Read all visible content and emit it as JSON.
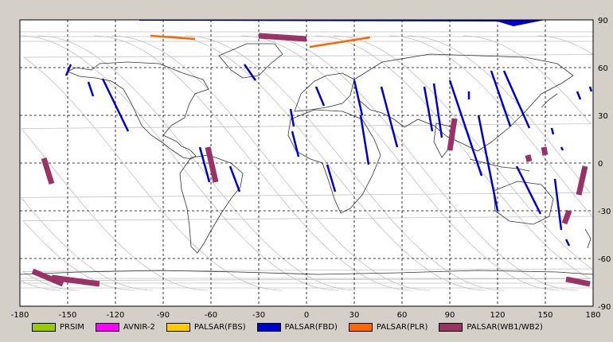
{
  "map": {
    "x_ticks": [
      "-180",
      "-150",
      "-120",
      "-90",
      "-60",
      "-30",
      "0",
      "30",
      "60",
      "90",
      "120",
      "150",
      "180"
    ],
    "y_ticks": [
      "90",
      "60",
      "30",
      "0",
      "-30",
      "-60",
      "-90"
    ],
    "colors": {
      "background": "#ffffff",
      "grid": "#000000",
      "coast": "#222222",
      "orbit": "#c0c0c0",
      "window_bg": "#d4d0c8"
    },
    "chart_data": {
      "type": "map",
      "projection": "equirectangular",
      "xlim": [
        -180,
        180
      ],
      "ylim": [
        -90,
        90
      ],
      "grid": true,
      "grid_style": "dashed",
      "legend_placement": "bottom",
      "series": [
        {
          "name": "PRSIM",
          "color": "#99cc00",
          "tracks": []
        },
        {
          "name": "AVNIR-2",
          "color": "#ff00ff",
          "tracks": []
        },
        {
          "name": "PALSAR(FBS)",
          "color": "#ffcc00",
          "tracks": []
        },
        {
          "name": "PALSAR(FBD)",
          "color": "#0000cc",
          "tracks": [
            [
              [
                -148,
                62
              ],
              [
                -151,
                55
              ]
            ],
            [
              [
                -137,
                51
              ],
              [
                -134,
                42
              ]
            ],
            [
              [
                -128,
                53
              ],
              [
                -112,
                20
              ]
            ],
            [
              [
                -67,
                10
              ],
              [
                -61,
                -12
              ]
            ],
            [
              [
                -48,
                -2
              ],
              [
                -42,
                -18
              ]
            ],
            [
              [
                -39,
                62
              ],
              [
                -32,
                52
              ]
            ],
            [
              [
                -10,
                34
              ],
              [
                -8,
                23
              ]
            ],
            [
              [
                -9,
                20
              ],
              [
                -5,
                4
              ]
            ],
            [
              [
                6,
                48
              ],
              [
                11,
                36
              ]
            ],
            [
              [
                13,
                -1
              ],
              [
                18,
                -18
              ]
            ],
            [
              [
                30,
                52
              ],
              [
                35,
                30
              ]
            ],
            [
              [
                34,
                30
              ],
              [
                39,
                -1
              ]
            ],
            [
              [
                47,
                48
              ],
              [
                57,
                10
              ]
            ],
            [
              [
                80,
                50
              ],
              [
                85,
                16
              ]
            ],
            [
              [
                74,
                48
              ],
              [
                79,
                20
              ]
            ],
            [
              [
                90,
                52
              ],
              [
                110,
                -8
              ]
            ],
            [
              [
                108,
                30
              ],
              [
                120,
                -30
              ]
            ],
            [
              [
                116,
                58
              ],
              [
                128,
                23
              ]
            ],
            [
              [
                124,
                58
              ],
              [
                140,
                22
              ]
            ],
            [
              [
                132,
                -2
              ],
              [
                147,
                -32
              ]
            ],
            [
              [
                154,
                22
              ],
              [
                155,
                18
              ]
            ],
            [
              [
                160,
                10
              ],
              [
                161,
                8
              ]
            ],
            [
              [
                156,
                -10
              ],
              [
                160,
                -42
              ]
            ],
            [
              [
                170,
                45
              ],
              [
                172,
                40
              ]
            ],
            [
              [
                178,
                48
              ],
              [
                179,
                45
              ]
            ],
            [
              [
                163,
                -48
              ],
              [
                165,
                -52
              ]
            ],
            [
              [
                102,
                45
              ],
              [
                102,
                40
              ]
            ]
          ]
        },
        {
          "name": "PALSAR(PLR)",
          "color": "#ff6600",
          "tracks": [
            [
              [
                -98,
                80
              ],
              [
                -70,
                78
              ]
            ],
            [
              [
                2,
                73
              ],
              [
                40,
                79
              ]
            ]
          ]
        },
        {
          "name": "PALSAR(WB1/WB2)",
          "color": "#993366",
          "tracks": [
            [
              [
                -165,
                3
              ],
              [
                -160,
                -13
              ]
            ],
            [
              [
                -172,
                -68
              ],
              [
                -153,
                -76
              ]
            ],
            [
              [
                -160,
                -72
              ],
              [
                -130,
                -76
              ]
            ],
            [
              [
                -62,
                10
              ],
              [
                -57,
                -12
              ]
            ],
            [
              [
                -30,
                80
              ],
              [
                0,
                78
              ]
            ],
            [
              [
                93,
                28
              ],
              [
                90,
                8
              ]
            ],
            [
              [
                139,
                5
              ],
              [
                140,
                1
              ]
            ],
            [
              [
                149,
                10
              ],
              [
                150,
                5
              ]
            ],
            [
              [
                175,
                -2
              ],
              [
                171,
                -20
              ]
            ],
            [
              [
                165,
                -30
              ],
              [
                162,
                -38
              ]
            ],
            [
              [
                163,
                -73
              ],
              [
                178,
                -76
              ]
            ]
          ]
        }
      ]
    }
  },
  "legend": [
    {
      "label": "PRSIM",
      "color": "#99cc00"
    },
    {
      "label": "AVNIR-2",
      "color": "#ff00ff"
    },
    {
      "label": "PALSAR(FBS)",
      "color": "#ffcc00"
    },
    {
      "label": "PALSAR(FBD)",
      "color": "#0000cc"
    },
    {
      "label": "PALSAR(PLR)",
      "color": "#ff6600"
    },
    {
      "label": "PALSAR(WB1/WB2)",
      "color": "#993366"
    }
  ]
}
